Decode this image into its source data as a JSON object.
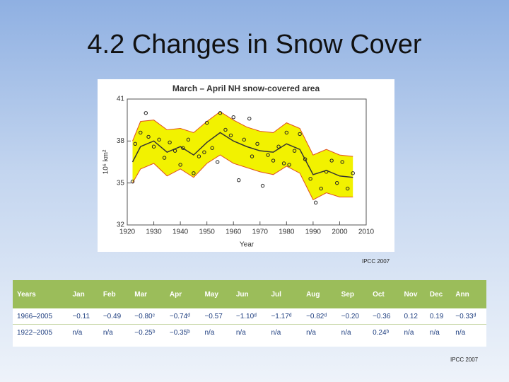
{
  "title": "4.2 Changes in Snow Cover",
  "chart_data": {
    "type": "line",
    "title": "March – April NH snow-covered area",
    "x_label": "Year",
    "y_label": "10⁶ km²",
    "x": [
      1922,
      1925,
      1930,
      1935,
      1940,
      1945,
      1950,
      1955,
      1960,
      1965,
      1970,
      1975,
      1980,
      1985,
      1990,
      1995,
      2000,
      2005
    ],
    "series": [
      {
        "color": "#333333",
        "values": [
          36.5,
          37.6,
          38.0,
          37.2,
          37.6,
          37.0,
          37.9,
          38.6,
          38.0,
          37.6,
          37.3,
          37.2,
          37.8,
          37.4,
          35.6,
          35.9,
          35.5,
          35.4
        ]
      }
    ],
    "band": {
      "color": "#f2f200",
      "edge_color": "#e05020",
      "upper": [
        38.0,
        39.4,
        39.5,
        38.8,
        38.9,
        38.6,
        39.4,
        40.1,
        39.5,
        39.0,
        38.7,
        38.6,
        39.3,
        38.9,
        37.0,
        37.4,
        37.0,
        36.9
      ],
      "lower": [
        35.0,
        36.0,
        36.4,
        35.5,
        36.0,
        35.4,
        36.4,
        37.0,
        36.4,
        36.1,
        35.8,
        35.6,
        36.2,
        35.7,
        33.8,
        34.3,
        34.0,
        34.0
      ]
    },
    "points": {
      "color": "#222222",
      "x": [
        1922,
        1923,
        1925,
        1927,
        1928,
        1930,
        1932,
        1934,
        1936,
        1938,
        1940,
        1941,
        1943,
        1945,
        1947,
        1949,
        1950,
        1952,
        1954,
        1955,
        1957,
        1959,
        1960,
        1962,
        1964,
        1966,
        1967,
        1969,
        1971,
        1973,
        1975,
        1977,
        1979,
        1980,
        1981,
        1983,
        1985,
        1987,
        1989,
        1991,
        1993,
        1995,
        1997,
        1999,
        2001,
        2003,
        2005
      ],
      "values": [
        35.1,
        37.8,
        38.6,
        40.0,
        38.3,
        37.6,
        38.1,
        36.8,
        37.9,
        37.3,
        36.3,
        37.5,
        38.1,
        35.7,
        36.9,
        37.2,
        39.3,
        37.5,
        36.5,
        40.0,
        38.8,
        38.4,
        39.7,
        35.2,
        38.1,
        39.6,
        36.9,
        37.8,
        34.8,
        37.0,
        36.6,
        37.6,
        36.4,
        38.6,
        36.3,
        37.3,
        38.5,
        36.7,
        35.3,
        33.6,
        34.6,
        35.8,
        36.6,
        35.0,
        36.5,
        34.6,
        35.7
      ]
    },
    "xlim": [
      1920,
      2010
    ],
    "xticks": [
      1920,
      1930,
      1940,
      1950,
      1960,
      1970,
      1980,
      1990,
      2000,
      2010
    ],
    "ylim": [
      32,
      41
    ],
    "yticks": [
      32,
      35,
      38,
      41
    ]
  },
  "credit": "IPCC 2007",
  "table": {
    "header": [
      "Years",
      "Jan",
      "Feb",
      "Mar",
      "Apr",
      "May",
      "Jun",
      "Jul",
      "Aug",
      "Sep",
      "Oct",
      "Nov",
      "Dec",
      "Ann"
    ],
    "rows": [
      [
        "1966–2005",
        "−0.11",
        "−0.49",
        "−0.80ᶜ",
        "−0.74ᵈ",
        "−0.57",
        "−1.10ᵈ",
        "−1.17ᵈ",
        "−0.82ᵈ",
        "−0.20",
        "−0.36",
        "0.12",
        "0.19",
        "−0.33ᵈ"
      ],
      [
        "1922–2005",
        "n/a",
        "n/a",
        "−0.25ᵇ",
        "−0.35ᵇ",
        "n/a",
        "n/a",
        "n/a",
        "n/a",
        "n/a",
        "0.24ᵇ",
        "n/a",
        "n/a",
        "n/a"
      ]
    ]
  },
  "footer_credit": "IPCC 2007"
}
